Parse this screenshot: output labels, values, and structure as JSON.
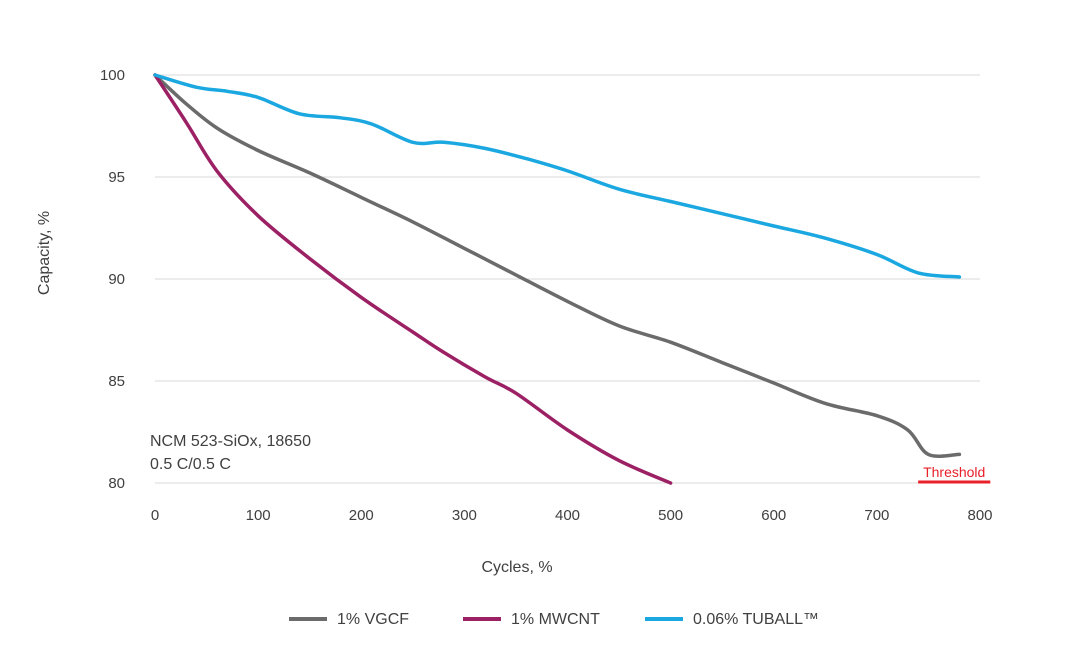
{
  "chart_data": {
    "type": "line",
    "title": "",
    "xlabel": "Cycles, %",
    "ylabel": "Capacity, %",
    "xlim": [
      0,
      800
    ],
    "ylim": [
      80,
      100
    ],
    "xticks": [
      0,
      100,
      200,
      300,
      400,
      500,
      600,
      700,
      800
    ],
    "yticks": [
      80,
      85,
      90,
      95,
      100
    ],
    "grid": "horizontal",
    "legend_position": "bottom",
    "annotation_lines": [
      "NCM 523-SiOx, 18650",
      "0.5 C/0.5 C"
    ],
    "threshold": {
      "label": "Threshold",
      "y": 80,
      "x_start": 740,
      "x_end": 810,
      "color": "#e8202a"
    },
    "series": [
      {
        "name": "1% VGCF",
        "color": "#6b6b6b",
        "points": [
          [
            0,
            100
          ],
          [
            30,
            98.6
          ],
          [
            60,
            97.4
          ],
          [
            100,
            96.3
          ],
          [
            150,
            95.2
          ],
          [
            200,
            94.0
          ],
          [
            250,
            92.8
          ],
          [
            300,
            91.5
          ],
          [
            350,
            90.2
          ],
          [
            400,
            88.9
          ],
          [
            450,
            87.7
          ],
          [
            500,
            86.9
          ],
          [
            550,
            85.9
          ],
          [
            600,
            84.9
          ],
          [
            650,
            83.9
          ],
          [
            700,
            83.3
          ],
          [
            730,
            82.6
          ],
          [
            750,
            81.4
          ],
          [
            780,
            81.4
          ]
        ]
      },
      {
        "name": "1% MWCNT",
        "color": "#9c2164",
        "points": [
          [
            0,
            100
          ],
          [
            30,
            97.7
          ],
          [
            60,
            95.3
          ],
          [
            100,
            93.1
          ],
          [
            150,
            91.0
          ],
          [
            200,
            89.1
          ],
          [
            250,
            87.4
          ],
          [
            280,
            86.4
          ],
          [
            320,
            85.2
          ],
          [
            350,
            84.4
          ],
          [
            400,
            82.6
          ],
          [
            450,
            81.1
          ],
          [
            500,
            80.0
          ]
        ]
      },
      {
        "name": "0.06% TUBALL™",
        "color": "#1ba8e1",
        "points": [
          [
            0,
            100
          ],
          [
            40,
            99.4
          ],
          [
            70,
            99.2
          ],
          [
            100,
            98.9
          ],
          [
            140,
            98.1
          ],
          [
            180,
            97.9
          ],
          [
            210,
            97.6
          ],
          [
            250,
            96.7
          ],
          [
            280,
            96.7
          ],
          [
            320,
            96.4
          ],
          [
            360,
            95.9
          ],
          [
            400,
            95.3
          ],
          [
            450,
            94.4
          ],
          [
            500,
            93.8
          ],
          [
            550,
            93.2
          ],
          [
            600,
            92.6
          ],
          [
            650,
            92.0
          ],
          [
            700,
            91.2
          ],
          [
            740,
            90.3
          ],
          [
            780,
            90.1
          ]
        ]
      }
    ]
  }
}
